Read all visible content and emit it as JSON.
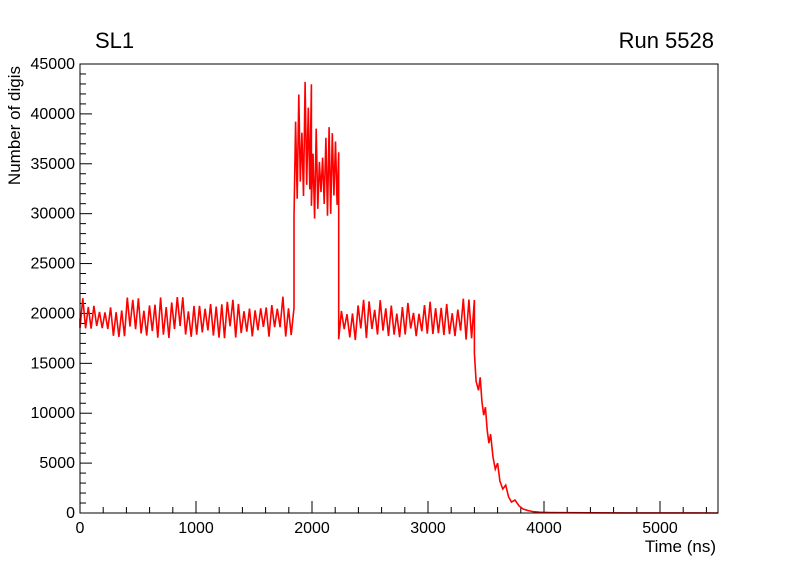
{
  "chart_data": {
    "type": "line",
    "title_left": "SL1",
    "title_right": "Run 5528",
    "xlabel": "Time (ns)",
    "ylabel": "Number of digis",
    "xlim": [
      0,
      5500
    ],
    "ylim": [
      0,
      45000
    ],
    "x_major_ticks": [
      0,
      1000,
      2000,
      3000,
      4000,
      5000
    ],
    "x_minor_step": 200,
    "y_major_ticks": [
      0,
      5000,
      10000,
      15000,
      20000,
      25000,
      30000,
      35000,
      40000,
      45000
    ],
    "y_minor_step": 1000,
    "grid": false,
    "legend": "none",
    "line_color": "#ff0000",
    "background_color": "#ffffff",
    "series": {
      "name": "digis-vs-time",
      "description": "Noisy oscillating histogram: plateau near 19500 (17500-21700) from 0-1845 ns, burst 28500-44300 from 1845-1995 ns, burst 29500-38700 from 1995-2230 ns, plateau 17300-21600 from 2230-3400 ns, stepped decay to ~0 by 3900 ns, flat near 0 to 5500 ns. Peak value ~44300 at ~1900 ns.",
      "segments": [
        {
          "kind": "points",
          "pts": [
            [
              0,
              19500
            ]
          ]
        },
        {
          "kind": "noise",
          "x0": 0,
          "x1": 1845,
          "y_min": 17500,
          "y_max": 21700,
          "step": 24,
          "seed": 1
        },
        {
          "kind": "noise",
          "x0": 1845,
          "x1": 1995,
          "y_min": 28500,
          "y_max": 44300,
          "step": 14,
          "seed": 7
        },
        {
          "kind": "noise",
          "x0": 1995,
          "x1": 2230,
          "y_min": 29500,
          "y_max": 38700,
          "step": 14,
          "seed": 13
        },
        {
          "kind": "noise",
          "x0": 2230,
          "x1": 3400,
          "y_min": 17300,
          "y_max": 21600,
          "step": 24,
          "seed": 21
        },
        {
          "kind": "points",
          "pts": [
            [
              3400,
              16000
            ],
            [
              3415,
              13200
            ],
            [
              3435,
              12300
            ],
            [
              3450,
              13600
            ],
            [
              3465,
              11200
            ],
            [
              3480,
              9800
            ],
            [
              3495,
              10600
            ],
            [
              3510,
              8300
            ],
            [
              3525,
              7000
            ],
            [
              3540,
              7900
            ],
            [
              3560,
              5600
            ],
            [
              3580,
              4400
            ],
            [
              3600,
              5000
            ],
            [
              3620,
              3200
            ],
            [
              3645,
              2400
            ],
            [
              3670,
              2800
            ],
            [
              3695,
              1600
            ],
            [
              3720,
              1100
            ],
            [
              3750,
              1300
            ],
            [
              3785,
              700
            ],
            [
              3820,
              400
            ],
            [
              3860,
              250
            ],
            [
              3900,
              150
            ],
            [
              3960,
              80
            ],
            [
              4050,
              50
            ],
            [
              4200,
              30
            ],
            [
              4400,
              20
            ],
            [
              4700,
              15
            ],
            [
              5000,
              10
            ],
            [
              5300,
              8
            ],
            [
              5500,
              5
            ]
          ]
        }
      ]
    }
  }
}
